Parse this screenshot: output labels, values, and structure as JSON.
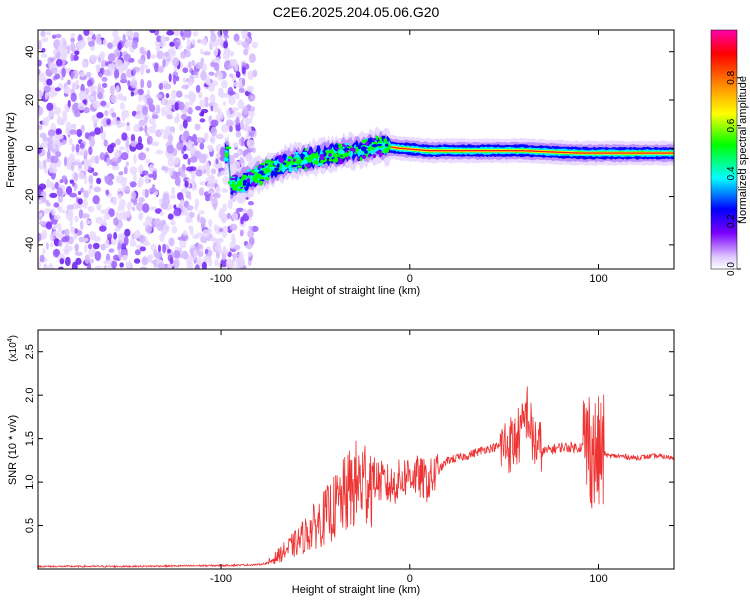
{
  "title": "C2E6.2025.204.05.06.G20",
  "chart_data": [
    {
      "type": "heatmap",
      "xlabel": "Height of straight line (km)",
      "ylabel": "Frequency (Hz)",
      "xlim": [
        -197,
        140
      ],
      "ylim": [
        -50,
        49
      ],
      "x_ticks": [
        -100,
        0,
        100
      ],
      "x_tick_labels": [
        "-100",
        "0",
        "100"
      ],
      "y_ticks": [
        40,
        20,
        0,
        -20,
        -40
      ],
      "y_tick_labels": [
        "40",
        "20",
        "0",
        "-20",
        "-40"
      ],
      "grid": false,
      "colorbar": {
        "label": "Normalized spectral amplitude",
        "range": [
          0,
          1
        ],
        "ticks": [
          0.0,
          0.2,
          0.4,
          0.6,
          0.8
        ],
        "tick_labels": [
          "0.0",
          "0.2",
          "0.4",
          "0.6",
          "0.8"
        ],
        "colors": [
          "#ffffff",
          "#e0c8ff",
          "#7b00ff",
          "#0000ff",
          "#00ffff",
          "#00ff00",
          "#ffff00",
          "#ff8000",
          "#ff0000",
          "#ff00aa"
        ]
      },
      "noise_region_x": [
        -197,
        -82
      ],
      "ridge": [
        {
          "x": -95,
          "y": -16
        },
        {
          "x": -85,
          "y": -13
        },
        {
          "x": -75,
          "y": -9
        },
        {
          "x": -60,
          "y": -5
        },
        {
          "x": -45,
          "y": -3
        },
        {
          "x": -30,
          "y": -1
        },
        {
          "x": -15,
          "y": 1
        },
        {
          "x": -5,
          "y": 0
        },
        {
          "x": 10,
          "y": -1
        },
        {
          "x": 30,
          "y": -1
        },
        {
          "x": 60,
          "y": -1
        },
        {
          "x": 90,
          "y": -2
        },
        {
          "x": 100,
          "y": -2
        },
        {
          "x": 140,
          "y": -2
        }
      ]
    },
    {
      "type": "line",
      "xlabel": "Height of straight line (km)",
      "ylabel": "SNR (10 * v/v)",
      "y_multiplier": "(x10",
      "y_multiplier_exp": "4",
      "y_multiplier_close": ")",
      "xlim": [
        -197,
        140
      ],
      "ylim": [
        0,
        2.75
      ],
      "x_ticks": [
        -100,
        0,
        100
      ],
      "x_tick_labels": [
        "-100",
        "0",
        "100"
      ],
      "y_ticks": [
        0.5,
        1.0,
        1.5,
        2.0,
        2.5
      ],
      "y_tick_labels": [
        "0.5",
        "1.0",
        "1.5",
        "2.0",
        "2.5"
      ],
      "grid": false,
      "series": [
        {
          "color": "#ee3333",
          "x": [
            -197,
            -150,
            -100,
            -80,
            -75,
            -70,
            -60,
            -50,
            -40,
            -30,
            -20,
            -10,
            0,
            10,
            20,
            30,
            40,
            50,
            55,
            60,
            62,
            65,
            70,
            80,
            90,
            95,
            98,
            100,
            102,
            105,
            110,
            120,
            130,
            140
          ],
          "values": [
            0.03,
            0.03,
            0.04,
            0.05,
            0.07,
            0.15,
            0.3,
            0.5,
            0.7,
            0.95,
            1.05,
            0.95,
            1.1,
            1.0,
            1.25,
            1.3,
            1.38,
            1.42,
            1.45,
            1.6,
            1.85,
            1.5,
            1.35,
            1.4,
            1.4,
            1.45,
            1.3,
            1.3,
            1.35,
            1.3,
            1.3,
            1.28,
            1.3,
            1.28
          ]
        }
      ]
    }
  ]
}
